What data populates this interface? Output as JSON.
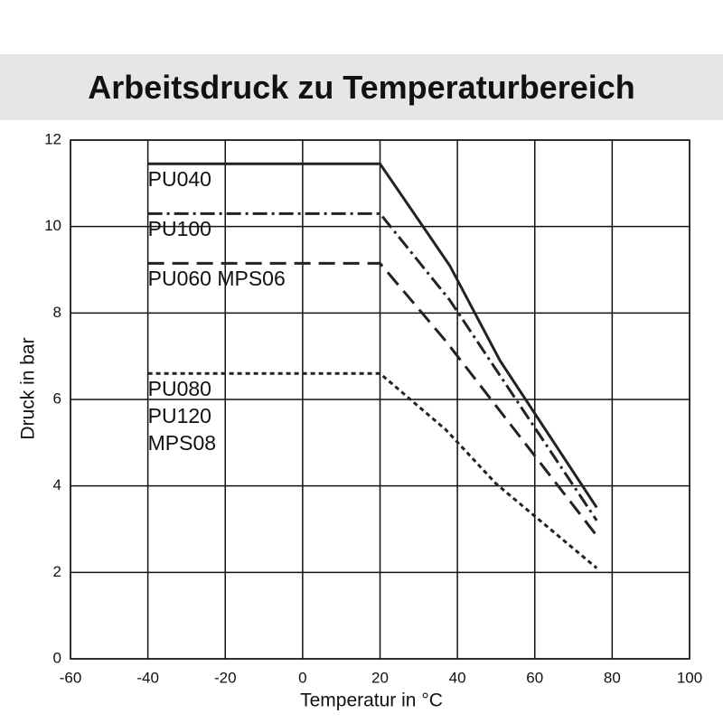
{
  "chart_data": {
    "type": "line",
    "title": "Arbeitsdruck zu Temperaturbereich",
    "x_label": "Temperatur in °C",
    "y_label": "Druck in bar",
    "xlim": [
      -60,
      100
    ],
    "xticks": [
      -60,
      -40,
      -20,
      0,
      20,
      40,
      60,
      80,
      100
    ],
    "ylim": [
      0,
      12
    ],
    "yticks": [
      0,
      2,
      4,
      6,
      8,
      10,
      12
    ],
    "grid": true,
    "series": [
      {
        "name": "PU040",
        "color": "#222222",
        "style": "solid",
        "x": [
          -40,
          20,
          38,
          51,
          76
        ],
        "values": [
          11.45,
          11.45,
          9.1,
          6.9,
          3.5
        ]
      },
      {
        "name": "PU100",
        "color": "#222222",
        "style": "dashdot",
        "x": [
          -40,
          20,
          38,
          76
        ],
        "values": [
          10.3,
          10.3,
          8.3,
          3.2
        ]
      },
      {
        "name": "PU060 MPS06",
        "color": "#222222",
        "style": "dashed",
        "x": [
          -40,
          20,
          37,
          76
        ],
        "values": [
          9.15,
          9.15,
          7.35,
          2.85
        ]
      },
      {
        "name": "PU080\nPU120\nMPS08",
        "color": "#222222",
        "style": "dotted",
        "x": [
          -40,
          20,
          37,
          50,
          76
        ],
        "values": [
          6.6,
          6.6,
          5.3,
          4.05,
          2.1
        ]
      }
    ]
  }
}
